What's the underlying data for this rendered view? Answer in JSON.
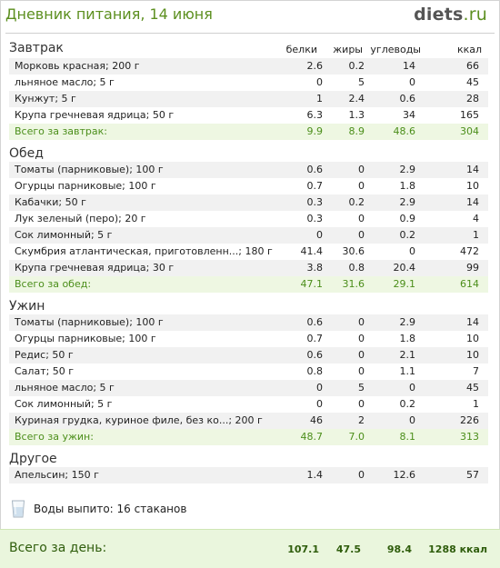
{
  "header": {
    "title": "Дневник питания, 14 июня",
    "logo_main": "diets",
    "logo_tld": ".ru"
  },
  "columns": {
    "protein": "белки",
    "fat": "жиры",
    "carbs": "углеводы",
    "kcal": "ккал"
  },
  "sections": [
    {
      "title": "Завтрак",
      "rows": [
        {
          "name": "Морковь красная; 200 г",
          "protein": "2.6",
          "fat": "0.2",
          "carbs": "14",
          "kcal": "66"
        },
        {
          "name": "льняное масло; 5 г",
          "protein": "0",
          "fat": "5",
          "carbs": "0",
          "kcal": "45"
        },
        {
          "name": "Кунжут; 5 г",
          "protein": "1",
          "fat": "2.4",
          "carbs": "0.6",
          "kcal": "28"
        },
        {
          "name": "Крупа гречневая ядрица; 50 г",
          "protein": "6.3",
          "fat": "1.3",
          "carbs": "34",
          "kcal": "165"
        }
      ],
      "total": {
        "name": "Всего за завтрак:",
        "protein": "9.9",
        "fat": "8.9",
        "carbs": "48.6",
        "kcal": "304"
      }
    },
    {
      "title": "Обед",
      "rows": [
        {
          "name": "Томаты (парниковые); 100 г",
          "protein": "0.6",
          "fat": "0",
          "carbs": "2.9",
          "kcal": "14"
        },
        {
          "name": "Огурцы парниковые; 100 г",
          "protein": "0.7",
          "fat": "0",
          "carbs": "1.8",
          "kcal": "10"
        },
        {
          "name": "Кабачки; 50 г",
          "protein": "0.3",
          "fat": "0.2",
          "carbs": "2.9",
          "kcal": "14"
        },
        {
          "name": "Лук зеленый (перо); 20 г",
          "protein": "0.3",
          "fat": "0",
          "carbs": "0.9",
          "kcal": "4"
        },
        {
          "name": "Сок лимонный; 5 г",
          "protein": "0",
          "fat": "0",
          "carbs": "0.2",
          "kcal": "1"
        },
        {
          "name": "Скумбрия атлантическая, приготовленн...; 180 г",
          "protein": "41.4",
          "fat": "30.6",
          "carbs": "0",
          "kcal": "472"
        },
        {
          "name": "Крупа гречневая ядрица; 30 г",
          "protein": "3.8",
          "fat": "0.8",
          "carbs": "20.4",
          "kcal": "99"
        }
      ],
      "total": {
        "name": "Всего за обед:",
        "protein": "47.1",
        "fat": "31.6",
        "carbs": "29.1",
        "kcal": "614"
      }
    },
    {
      "title": "Ужин",
      "rows": [
        {
          "name": "Томаты (парниковые); 100 г",
          "protein": "0.6",
          "fat": "0",
          "carbs": "2.9",
          "kcal": "14"
        },
        {
          "name": "Огурцы парниковые; 100 г",
          "protein": "0.7",
          "fat": "0",
          "carbs": "1.8",
          "kcal": "10"
        },
        {
          "name": "Редис; 50 г",
          "protein": "0.6",
          "fat": "0",
          "carbs": "2.1",
          "kcal": "10"
        },
        {
          "name": "Салат; 50 г",
          "protein": "0.8",
          "fat": "0",
          "carbs": "1.1",
          "kcal": "7"
        },
        {
          "name": "льняное масло; 5 г",
          "protein": "0",
          "fat": "5",
          "carbs": "0",
          "kcal": "45"
        },
        {
          "name": "Сок лимонный; 5 г",
          "protein": "0",
          "fat": "0",
          "carbs": "0.2",
          "kcal": "1"
        },
        {
          "name": "Куриная грудка, куриное филе, без ко...; 200 г",
          "protein": "46",
          "fat": "2",
          "carbs": "0",
          "kcal": "226"
        }
      ],
      "total": {
        "name": "Всего за ужин:",
        "protein": "48.7",
        "fat": "7.0",
        "carbs": "8.1",
        "kcal": "313"
      }
    },
    {
      "title": "Другое",
      "rows": [
        {
          "name": "Апельсин; 150 г",
          "protein": "1.4",
          "fat": "0",
          "carbs": "12.6",
          "kcal": "57"
        }
      ]
    }
  ],
  "water": {
    "text": "Воды выпито: 16 стаканов",
    "icon": "water-glass-icon"
  },
  "day_total": {
    "label": "Всего за день:",
    "protein": "107.1",
    "fat": "47.5",
    "carbs": "98.4",
    "kcal": "1288 ккал"
  },
  "colors": {
    "accent_green": "#5c8f1f",
    "total_green": "#4b8e1a",
    "row_alt": "#f1f1f1",
    "total_bg": "#eef7e2"
  }
}
